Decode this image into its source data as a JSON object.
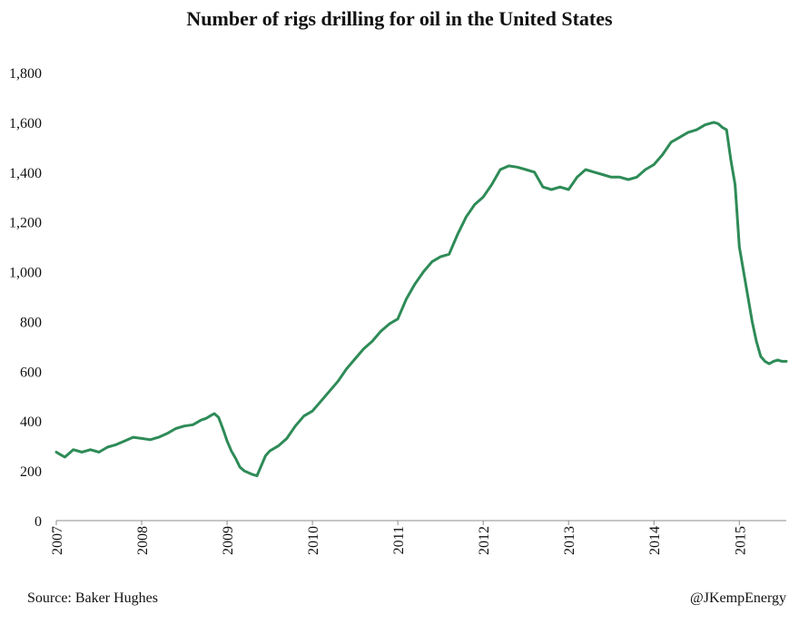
{
  "chart_data": {
    "type": "line",
    "title": "Number of rigs drilling for oil in the United States",
    "xlabel": "",
    "ylabel": "",
    "xlim": [
      2007.0,
      2015.55
    ],
    "ylim": [
      0,
      1800
    ],
    "yticks": [
      0,
      200,
      400,
      600,
      800,
      1000,
      1200,
      1400,
      1600,
      1800
    ],
    "ytick_labels": [
      "0",
      "200",
      "400",
      "600",
      "800",
      "1,000",
      "1,200",
      "1,400",
      "1,600",
      "1,800"
    ],
    "xticks": [
      2007,
      2008,
      2009,
      2010,
      2011,
      2012,
      2013,
      2014,
      2015
    ],
    "xtick_labels": [
      "2007",
      "2008",
      "2009",
      "2010",
      "2011",
      "2012",
      "2013",
      "2014",
      "2015"
    ],
    "grid": false,
    "legend": "none",
    "line_color": "#2e8b57",
    "series": [
      {
        "x": [
          2007.0,
          2007.05,
          2007.1,
          2007.15,
          2007.2,
          2007.3,
          2007.4,
          2007.5,
          2007.6,
          2007.7,
          2007.8,
          2007.9,
          2008.0,
          2008.1,
          2008.2,
          2008.3,
          2008.4,
          2008.5,
          2008.6,
          2008.7,
          2008.75,
          2008.8,
          2008.85,
          2008.9,
          2008.95,
          2009.0,
          2009.05,
          2009.1,
          2009.15,
          2009.2,
          2009.3,
          2009.35,
          2009.4,
          2009.45,
          2009.5,
          2009.6,
          2009.7,
          2009.8,
          2009.9,
          2010.0,
          2010.1,
          2010.2,
          2010.3,
          2010.4,
          2010.5,
          2010.6,
          2010.7,
          2010.8,
          2010.9,
          2011.0,
          2011.1,
          2011.2,
          2011.3,
          2011.4,
          2011.5,
          2011.6,
          2011.7,
          2011.8,
          2011.9,
          2012.0,
          2012.1,
          2012.2,
          2012.3,
          2012.4,
          2012.5,
          2012.6,
          2012.7,
          2012.8,
          2012.9,
          2013.0,
          2013.1,
          2013.2,
          2013.3,
          2013.4,
          2013.5,
          2013.6,
          2013.7,
          2013.8,
          2013.9,
          2014.0,
          2014.1,
          2014.2,
          2014.3,
          2014.4,
          2014.5,
          2014.6,
          2014.7,
          2014.75,
          2014.8,
          2014.85,
          2014.9,
          2014.95,
          2015.0,
          2015.05,
          2015.1,
          2015.15,
          2015.2,
          2015.25,
          2015.3,
          2015.35,
          2015.4,
          2015.45,
          2015.5,
          2015.55
        ],
        "values": [
          275,
          265,
          255,
          270,
          285,
          275,
          285,
          275,
          295,
          305,
          320,
          335,
          330,
          325,
          335,
          350,
          370,
          380,
          385,
          405,
          410,
          420,
          430,
          415,
          370,
          320,
          280,
          250,
          215,
          200,
          185,
          180,
          220,
          260,
          280,
          300,
          330,
          380,
          420,
          440,
          480,
          520,
          560,
          610,
          650,
          690,
          720,
          760,
          790,
          810,
          890,
          950,
          1000,
          1040,
          1060,
          1070,
          1150,
          1220,
          1270,
          1300,
          1350,
          1410,
          1425,
          1420,
          1410,
          1400,
          1340,
          1330,
          1340,
          1330,
          1380,
          1410,
          1400,
          1390,
          1380,
          1380,
          1370,
          1380,
          1410,
          1430,
          1470,
          1520,
          1540,
          1560,
          1570,
          1590,
          1600,
          1595,
          1580,
          1570,
          1450,
          1350,
          1100,
          1000,
          900,
          800,
          720,
          660,
          640,
          630,
          640,
          645,
          640,
          640
        ]
      }
    ]
  },
  "footer": {
    "source": "Source: Baker Hughes",
    "credit": "@JKempEnergy"
  }
}
